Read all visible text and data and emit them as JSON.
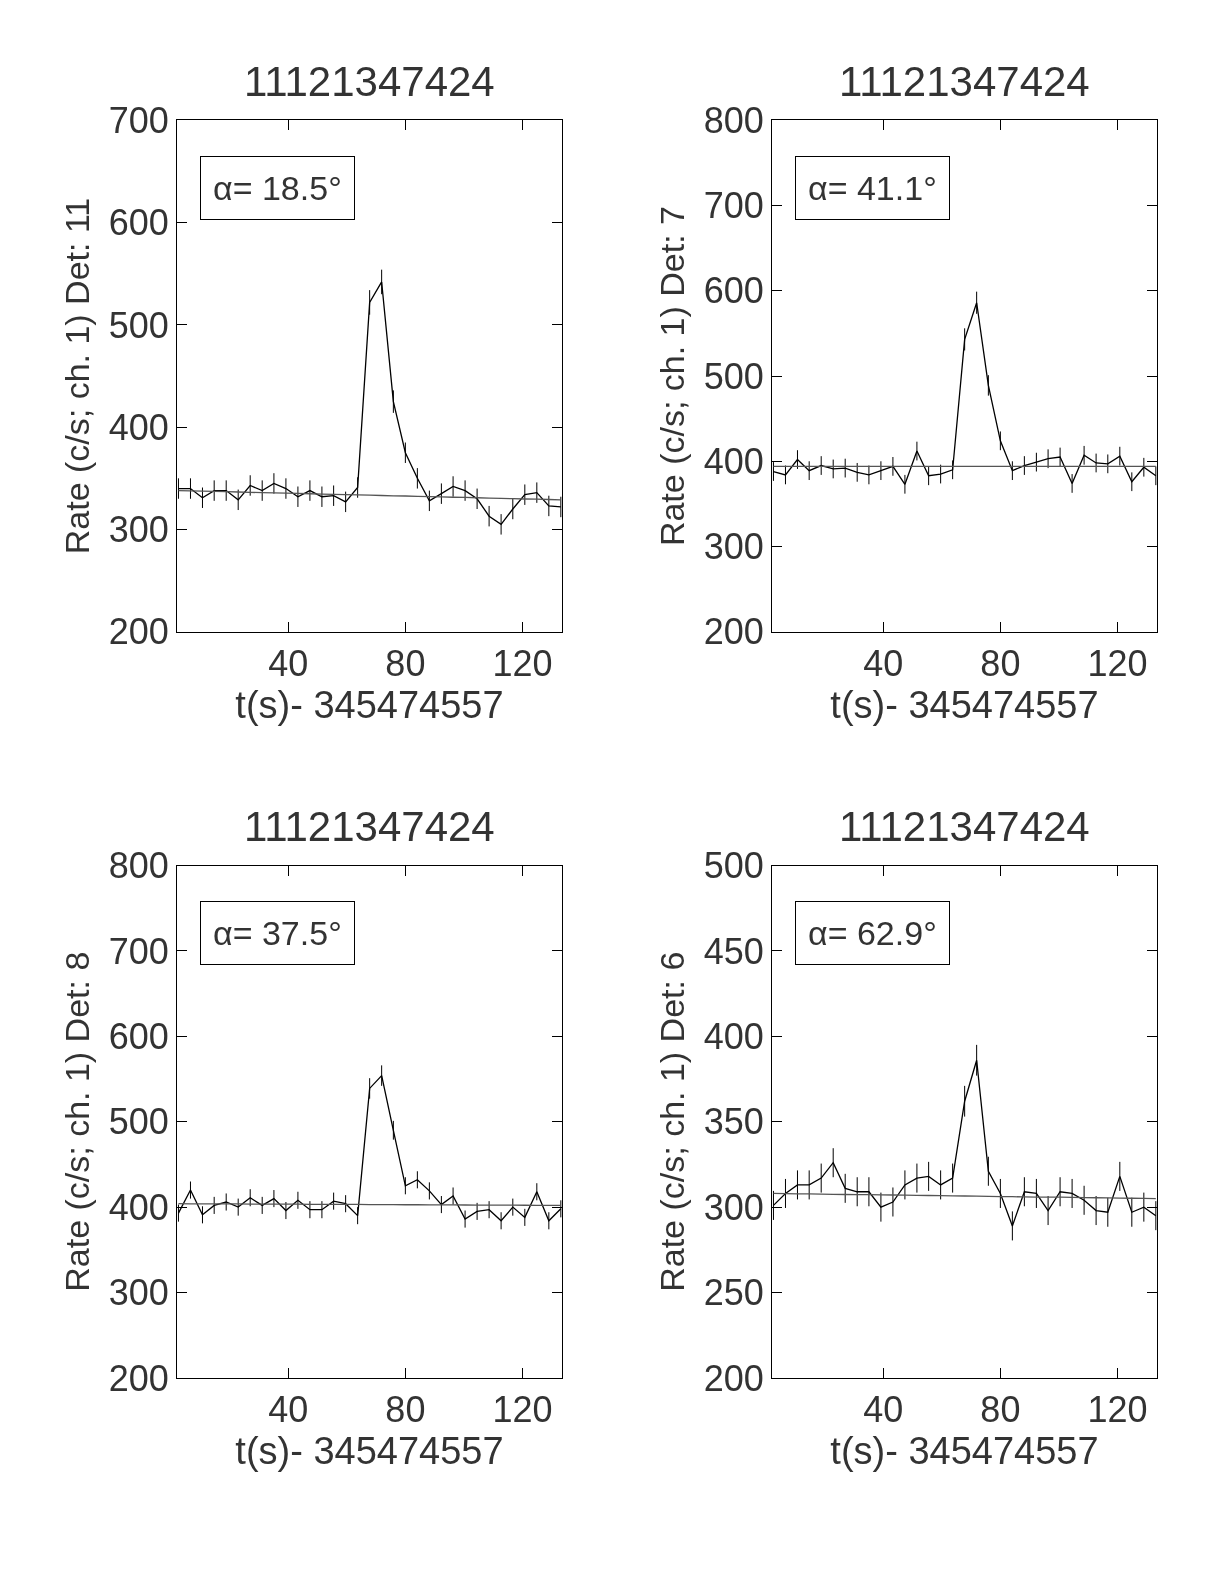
{
  "chart_data": [
    {
      "type": "line",
      "title": "11121347424",
      "xlabel": "t(s)- 345474557",
      "ylabel": "Rate (c/s; ch. 1) Det: 11",
      "annotations": [
        "α= 18.5°"
      ],
      "xlim": [
        2,
        133.5
      ],
      "xticks": [
        40,
        80,
        120
      ],
      "ylim": [
        200,
        700
      ],
      "yticks": [
        200,
        300,
        400,
        500,
        600,
        700
      ],
      "marker": "none",
      "line_style": "solid",
      "x": [
        2.5,
        6.6,
        10.7,
        14.7,
        18.8,
        22.9,
        27.0,
        31.1,
        35.1,
        39.2,
        43.3,
        47.4,
        51.5,
        55.5,
        59.6,
        63.7,
        67.8,
        71.9,
        75.9,
        80.0,
        84.1,
        88.2,
        92.3,
        96.3,
        100.4,
        104.5,
        108.6,
        112.7,
        116.7,
        120.8,
        124.9,
        129.0,
        133.1
      ],
      "series": [
        {
          "color": "#000000",
          "values": [
            340,
            340,
            331,
            338,
            338,
            329,
            343,
            338,
            345,
            340,
            332,
            338,
            332,
            333,
            327,
            341,
            522,
            542,
            425,
            375,
            350,
            328,
            335,
            342,
            338,
            330,
            313,
            305,
            320,
            334,
            336,
            323,
            322
          ],
          "errors": [
            10,
            10,
            10,
            10,
            10,
            10,
            10,
            10,
            10,
            10,
            10,
            10,
            10,
            10,
            10,
            10,
            12,
            12,
            11,
            10,
            10,
            10,
            10,
            10,
            10,
            10,
            10,
            10,
            10,
            10,
            10,
            10,
            10
          ]
        },
        {
          "color": "#555555",
          "values": [
            338,
            337.7,
            337.4,
            337.2,
            336.9,
            336.6,
            336.3,
            336.0,
            335.8,
            335.5,
            335.2,
            334.9,
            334.6,
            334.3,
            334.1,
            333.8,
            333.5,
            333.2,
            332.9,
            332.7,
            332.4,
            332.1,
            331.8,
            331.5,
            331.3,
            331.0,
            330.7,
            330.4,
            330.1,
            329.8,
            329.6,
            329.3,
            329
          ]
        }
      ]
    },
    {
      "type": "line",
      "title": "11121347424",
      "xlabel": "t(s)- 345474557",
      "ylabel": "Rate (c/s; ch. 1) Det: 7",
      "annotations": [
        "α= 41.1°"
      ],
      "xlim": [
        2,
        133.5
      ],
      "xticks": [
        40,
        80,
        120
      ],
      "ylim": [
        200,
        800
      ],
      "yticks": [
        200,
        300,
        400,
        500,
        600,
        700,
        800
      ],
      "marker": "none",
      "line_style": "solid",
      "x": [
        2.5,
        6.6,
        10.7,
        14.7,
        18.8,
        22.9,
        27.0,
        31.1,
        35.1,
        39.2,
        43.3,
        47.4,
        51.5,
        55.5,
        59.6,
        63.7,
        67.8,
        71.9,
        75.9,
        80.0,
        84.1,
        88.2,
        92.3,
        96.3,
        100.4,
        104.5,
        108.6,
        112.7,
        116.7,
        120.8,
        124.9,
        129.0,
        133.1
      ],
      "series": [
        {
          "color": "#000000",
          "values": [
            388,
            384,
            402,
            389,
            395,
            391,
            392,
            387,
            384,
            389,
            394,
            373,
            412,
            383,
            385,
            390,
            543,
            586,
            489,
            424,
            389,
            395,
            399,
            403,
            405,
            374,
            407,
            398,
            397,
            406,
            376,
            393,
            383
          ],
          "errors": [
            11,
            11,
            11,
            11,
            11,
            11,
            11,
            11,
            11,
            11,
            11,
            11,
            11,
            11,
            11,
            11,
            13,
            13,
            12,
            11,
            11,
            11,
            11,
            11,
            11,
            11,
            11,
            11,
            11,
            11,
            11,
            11,
            11
          ]
        },
        {
          "color": "#555555",
          "values": [
            394,
            394,
            394,
            394,
            394,
            394,
            394,
            394,
            394,
            394,
            394,
            394,
            394,
            394,
            394,
            394,
            394,
            394,
            394,
            394,
            394,
            394,
            394,
            394,
            394,
            394,
            394,
            394,
            394,
            394,
            394,
            394,
            394
          ]
        }
      ]
    },
    {
      "type": "line",
      "title": "11121347424",
      "xlabel": "t(s)- 345474557",
      "ylabel": "Rate (c/s; ch. 1) Det: 8",
      "annotations": [
        "α= 37.5°"
      ],
      "xlim": [
        2,
        133.5
      ],
      "xticks": [
        40,
        80,
        120
      ],
      "ylim": [
        200,
        800
      ],
      "yticks": [
        200,
        300,
        400,
        500,
        600,
        700,
        800
      ],
      "marker": "none",
      "line_style": "solid",
      "x": [
        2.5,
        6.6,
        10.7,
        14.7,
        18.8,
        22.9,
        27.0,
        31.1,
        35.1,
        39.2,
        43.3,
        47.4,
        51.5,
        55.5,
        59.6,
        63.7,
        67.8,
        71.9,
        75.9,
        80.0,
        84.1,
        88.2,
        92.3,
        96.3,
        100.4,
        104.5,
        108.6,
        112.7,
        116.7,
        120.8,
        124.9,
        129.0,
        133.1
      ],
      "series": [
        {
          "color": "#000000",
          "values": [
            393,
            420,
            391,
            402,
            406,
            400,
            411,
            402,
            410,
            396,
            408,
            397,
            397,
            407,
            404,
            390,
            539,
            554,
            490,
            425,
            432,
            419,
            403,
            413,
            386,
            395,
            397,
            384,
            400,
            388,
            418,
            384,
            398
          ],
          "errors": [
            10,
            10,
            10,
            10,
            10,
            10,
            10,
            10,
            10,
            10,
            10,
            10,
            10,
            10,
            10,
            10,
            12,
            12,
            11,
            10,
            10,
            10,
            10,
            10,
            10,
            10,
            10,
            10,
            10,
            10,
            10,
            10,
            10
          ]
        },
        {
          "color": "#555555",
          "values": [
            404,
            403.9,
            403.9,
            403.8,
            403.8,
            403.7,
            403.6,
            403.6,
            403.5,
            403.4,
            403.4,
            403.3,
            403.3,
            403.2,
            403.1,
            403.1,
            403,
            402.9,
            402.9,
            402.8,
            402.8,
            402.7,
            402.6,
            402.6,
            402.5,
            402.4,
            402.4,
            402.3,
            402.3,
            402.2,
            402.1,
            402.1,
            402
          ]
        }
      ]
    },
    {
      "type": "line",
      "title": "11121347424",
      "xlabel": "t(s)- 345474557",
      "ylabel": "Rate (c/s; ch. 1) Det: 6",
      "annotations": [
        "α= 62.9°"
      ],
      "xlim": [
        2,
        133.5
      ],
      "xticks": [
        40,
        80,
        120
      ],
      "ylim": [
        200,
        500
      ],
      "yticks": [
        200,
        250,
        300,
        350,
        400,
        450,
        500
      ],
      "marker": "none",
      "line_style": "solid",
      "x": [
        2.5,
        6.6,
        10.7,
        14.7,
        18.8,
        22.9,
        27.0,
        31.1,
        35.1,
        39.2,
        43.3,
        47.4,
        51.5,
        55.5,
        59.6,
        63.7,
        67.8,
        71.9,
        75.9,
        80.0,
        84.1,
        88.2,
        92.3,
        96.3,
        100.4,
        104.5,
        108.6,
        112.7,
        116.7,
        120.8,
        124.9,
        129.0,
        133.1
      ],
      "series": [
        {
          "color": "#000000",
          "values": [
            301,
            308,
            313,
            313,
            317,
            326,
            311,
            309,
            309,
            300,
            303,
            313,
            317,
            318,
            313,
            317,
            362,
            386,
            321,
            308,
            289,
            309,
            308,
            298,
            309,
            308,
            304,
            298,
            297,
            318,
            297,
            300,
            295
          ],
          "errors": [
            8.5,
            8.5,
            8.5,
            8.5,
            8.5,
            8.5,
            8.5,
            8.5,
            8.5,
            8.5,
            8.5,
            8.5,
            8.5,
            8.5,
            8.5,
            8.5,
            9,
            9,
            8.5,
            8.5,
            8.5,
            8.5,
            8.5,
            8.5,
            8.5,
            8.5,
            8.5,
            8.5,
            8.5,
            8.5,
            8.5,
            8.5,
            8.5
          ]
        },
        {
          "color": "#555555",
          "values": [
            308,
            307.9,
            307.8,
            307.7,
            307.6,
            307.5,
            307.4,
            307.3,
            307.3,
            307.2,
            307.1,
            307,
            306.9,
            306.8,
            306.7,
            306.6,
            306.5,
            306.4,
            306.3,
            306.2,
            306.1,
            306,
            305.9,
            305.8,
            305.8,
            305.7,
            305.6,
            305.5,
            305.4,
            305.3,
            305.2,
            305.1,
            305
          ]
        }
      ]
    }
  ]
}
